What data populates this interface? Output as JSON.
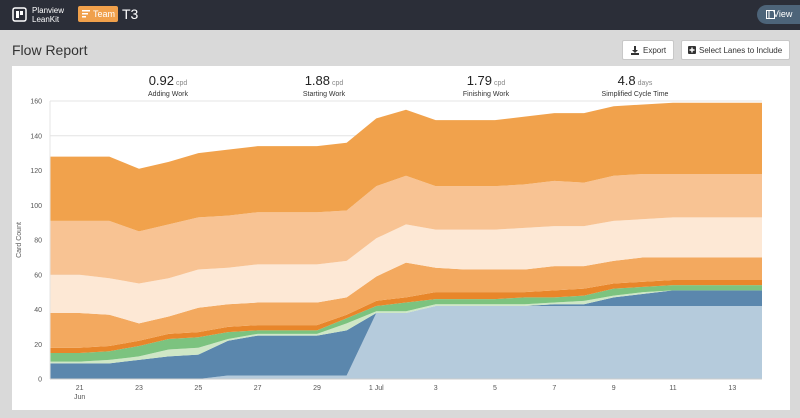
{
  "header": {
    "logo": [
      "Planview",
      "LeanKit"
    ],
    "badge": "Team",
    "board": "T3",
    "view_button": "View"
  },
  "toolbar": {
    "title": "Flow Report",
    "buttons": [
      "Export",
      "Select Lanes to Include"
    ]
  },
  "stats": [
    {
      "value": 0.92,
      "unit": "cpd",
      "label": "Adding Work"
    },
    {
      "value": 1.88,
      "unit": "cpd",
      "label": "Starting Work"
    },
    {
      "value": 1.79,
      "unit": "cpd",
      "label": "Finishing Work"
    },
    {
      "value": 4.8,
      "unit": "days",
      "label": "Simplified Cycle Time"
    }
  ],
  "chart_data": {
    "type": "stacked-area",
    "y_label": "Card Count",
    "categories": [
      null,
      "21 Jun",
      null,
      "23",
      null,
      "25",
      null,
      "27",
      null,
      "29",
      null,
      "1 Jul",
      null,
      "3",
      null,
      "5",
      null,
      "7",
      null,
      "9",
      null,
      "11",
      null,
      "13",
      null
    ],
    "ylim": [
      0,
      160
    ],
    "yticks": [
      0,
      20,
      40,
      60,
      80,
      100,
      120,
      140,
      160
    ],
    "grid": true,
    "series": [
      {
        "color": "#b5cbdc",
        "values": [
          0,
          0,
          0,
          0,
          0,
          0,
          2,
          2,
          2,
          2,
          2,
          38,
          38,
          42,
          42,
          42,
          42,
          42,
          42,
          42,
          42,
          42,
          42,
          42,
          42
        ]
      },
      {
        "color": "#5b87ad",
        "values": [
          9,
          9,
          9,
          11,
          13,
          14,
          20,
          23,
          23,
          23,
          26,
          0,
          0,
          0,
          0,
          0,
          0,
          1,
          1,
          5,
          7,
          9,
          9,
          9,
          9
        ]
      },
      {
        "color": "#cfe7c6",
        "values": [
          1,
          1,
          2,
          2,
          4,
          4,
          1,
          1,
          1,
          1,
          4,
          1,
          1,
          1,
          1,
          1,
          1,
          1,
          2,
          1,
          1,
          0,
          0,
          0,
          0
        ]
      },
      {
        "color": "#7cc37f",
        "values": [
          5,
          5,
          5,
          6,
          6,
          6,
          4,
          2,
          2,
          2,
          3,
          3,
          5,
          3,
          3,
          3,
          4,
          3,
          3,
          4,
          3,
          3,
          3,
          3,
          3
        ]
      },
      {
        "color": "#e8862a",
        "values": [
          3,
          3,
          3,
          3,
          3,
          3,
          3,
          3,
          3,
          3,
          2,
          3,
          3,
          4,
          4,
          4,
          3,
          4,
          4,
          3,
          3,
          3,
          3,
          3,
          3
        ]
      },
      {
        "color": "#f3a95f",
        "values": [
          20,
          20,
          18,
          10,
          10,
          14,
          13,
          13,
          13,
          13,
          10,
          14,
          20,
          14,
          13,
          13,
          13,
          14,
          13,
          13,
          14,
          13,
          13,
          13,
          13
        ]
      },
      {
        "color": "#fde8d5",
        "values": [
          22,
          22,
          21,
          23,
          22,
          22,
          21,
          22,
          22,
          22,
          21,
          22,
          22,
          22,
          23,
          23,
          24,
          23,
          23,
          23,
          22,
          23,
          23,
          23,
          23
        ]
      },
      {
        "color": "#f8c393",
        "values": [
          31,
          31,
          33,
          30,
          31,
          30,
          30,
          30,
          30,
          30,
          29,
          30,
          28,
          25,
          25,
          25,
          25,
          26,
          25,
          26,
          26,
          25,
          25,
          25,
          25
        ]
      },
      {
        "color": "#f1a24c",
        "values": [
          37,
          37,
          37,
          36,
          36,
          37,
          38,
          38,
          38,
          38,
          39,
          39,
          38,
          38,
          38,
          38,
          39,
          39,
          40,
          40,
          40,
          41,
          41,
          41,
          41
        ]
      }
    ]
  }
}
